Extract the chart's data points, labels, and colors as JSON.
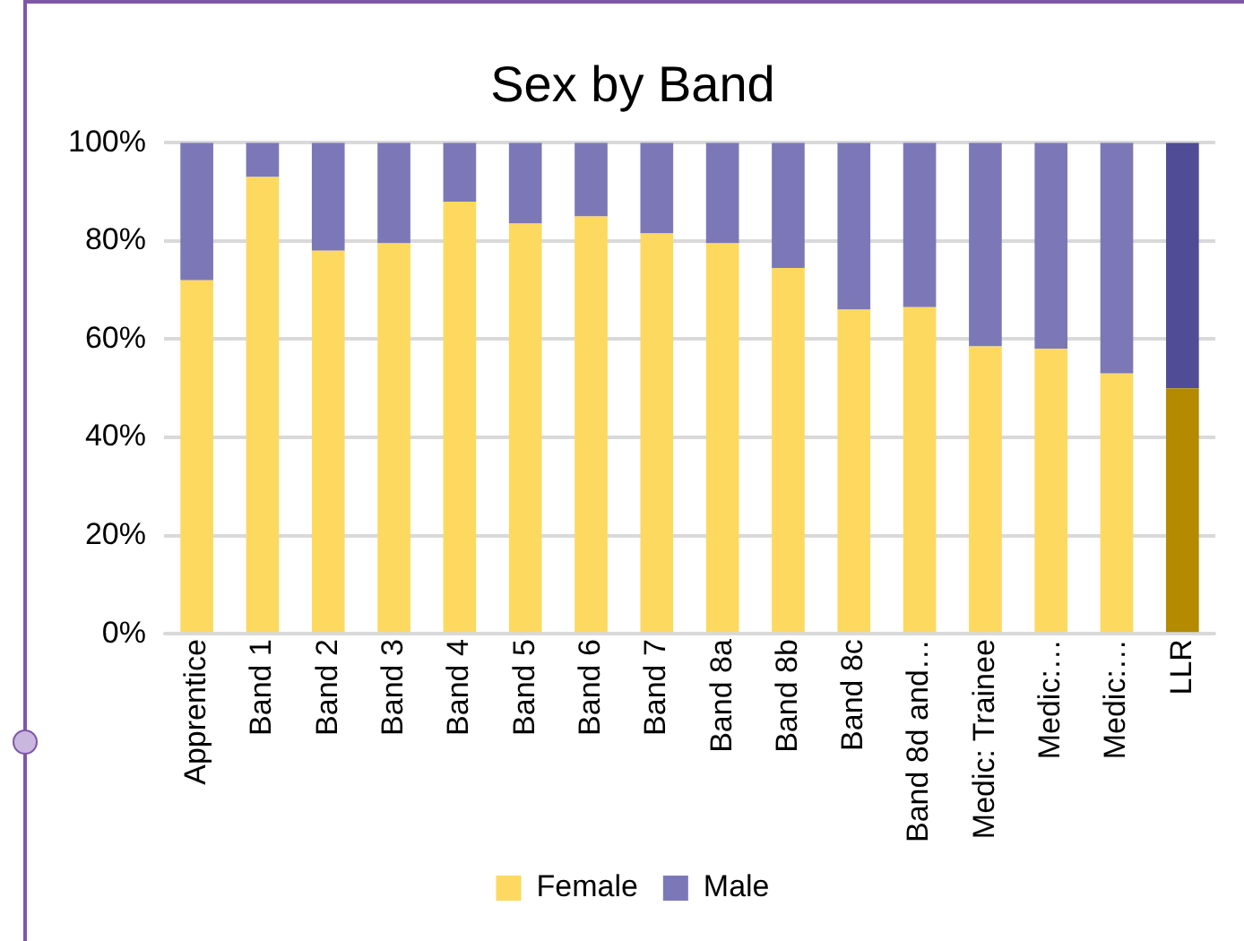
{
  "chart_data": {
    "type": "bar",
    "stacked": true,
    "title": "Sex by Band",
    "categories": [
      "Apprentice",
      "Band 1",
      "Band 2",
      "Band 3",
      "Band 4",
      "Band 5",
      "Band 6",
      "Band 7",
      "Band 8a",
      "Band 8b",
      "Band 8c",
      "Band 8d and…",
      "Medic: Trainee",
      "Medic:…",
      "Medic:…",
      "LLR"
    ],
    "series": [
      {
        "name": "Female",
        "color": "#fdd960",
        "colors": [
          "#fdd960",
          "#fdd960",
          "#fdd960",
          "#fdd960",
          "#fdd960",
          "#fdd960",
          "#fdd960",
          "#fdd960",
          "#fdd960",
          "#fdd960",
          "#fdd960",
          "#fdd960",
          "#fdd960",
          "#fdd960",
          "#fdd960",
          "#b38a00"
        ],
        "values": [
          72,
          93,
          78,
          79.5,
          88,
          83.5,
          85,
          81.5,
          79.5,
          74.5,
          66,
          66.5,
          58.5,
          58,
          53,
          50
        ]
      },
      {
        "name": "Male",
        "color": "#7c78b8",
        "colors": [
          "#7c78b8",
          "#7c78b8",
          "#7c78b8",
          "#7c78b8",
          "#7c78b8",
          "#7c78b8",
          "#7c78b8",
          "#7c78b8",
          "#7c78b8",
          "#7c78b8",
          "#7c78b8",
          "#7c78b8",
          "#7c78b8",
          "#7c78b8",
          "#7c78b8",
          "#514c96"
        ],
        "values": [
          28,
          7,
          22,
          20.5,
          12,
          16.5,
          15,
          18.5,
          20.5,
          25.5,
          34,
          33.5,
          41.5,
          42,
          47,
          50
        ]
      }
    ],
    "ylim": [
      0,
      100
    ],
    "yticks": [
      {
        "value": 0,
        "label": "0%"
      },
      {
        "value": 20,
        "label": "20%"
      },
      {
        "value": 40,
        "label": "40%"
      },
      {
        "value": 60,
        "label": "60%"
      },
      {
        "value": 80,
        "label": "80%"
      },
      {
        "value": 100,
        "label": "100%"
      }
    ],
    "grid": "y",
    "legend": "bottom"
  }
}
